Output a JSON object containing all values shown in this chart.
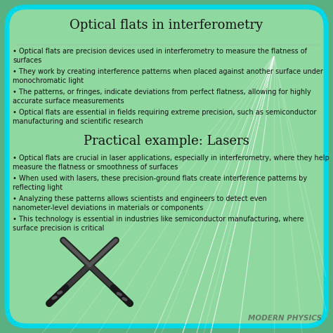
{
  "title1": "Optical flats in interferometry",
  "title2": "Practical example: Lasers",
  "bullets1": [
    "• Optical flats are precision devices used in interferometry to measure the flatness of\nsurfaces",
    "• They work by creating interference patterns when placed against another surface under\nmonochromatic light",
    "• The patterns, or fringes, indicate deviations from perfect flatness, allowing for highly\naccurate surface measurements",
    "• Optical flats are essential in fields requiring extreme precision, such as semiconductor\nmanufacturing and scientific research"
  ],
  "bullets2": [
    "• Optical flats are crucial in laser applications, especially in interferometry, where they help\nmeasure the flatness or smoothness of surfaces",
    "• When used with lasers, these precision-ground flats create interference patterns by\nreflecting light",
    "• Analyzing these patterns allows scientists and engineers to detect even\nnanometer-level deviations in materials or components",
    "• This technology is essential in industries like semiconductor manufacturing, where\nsurface precision is critical"
  ],
  "watermark": "MODERN PHYSICS",
  "bg_color": "#8fd8a0",
  "border_color": "#00d8e8",
  "text_color": "#111111",
  "title_color": "#111111",
  "watermark_color": "#607060",
  "beam_color": "#ffffff",
  "lightsaber_color": "#1a1a1a"
}
